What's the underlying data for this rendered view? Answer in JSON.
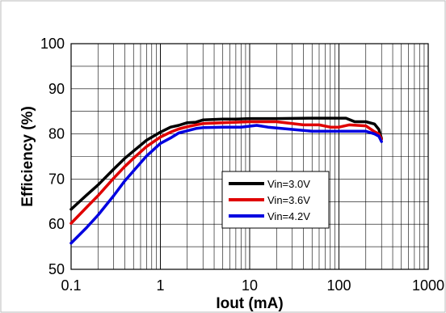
{
  "chart_data": {
    "type": "line",
    "title": "",
    "xlabel": "Iout (mA)",
    "ylabel": "Efficiency (%)",
    "xscale": "log",
    "xlim": [
      0.1,
      1000
    ],
    "ylim": [
      50,
      100
    ],
    "x_ticks": [
      0.1,
      1,
      10,
      100,
      1000
    ],
    "x_tick_labels": [
      "0.1",
      "1",
      "10",
      "100",
      "1000"
    ],
    "y_ticks": [
      50,
      60,
      70,
      80,
      90,
      100
    ],
    "y_tick_labels": [
      "50",
      "60",
      "70",
      "80",
      "90",
      "100"
    ],
    "grid": true,
    "legend_position": "center-right",
    "series": [
      {
        "name": "Vin=3.0V",
        "color": "#000000",
        "x": [
          0.1,
          0.15,
          0.2,
          0.3,
          0.4,
          0.5,
          0.7,
          1.0,
          1.3,
          1.6,
          2.0,
          2.5,
          3,
          5,
          7,
          10,
          20,
          50,
          100,
          120,
          150,
          200,
          250,
          280,
          300
        ],
        "y": [
          63.3,
          66.5,
          68.7,
          72.2,
          74.6,
          76.2,
          78.6,
          80.4,
          81.5,
          81.9,
          82.5,
          82.6,
          83.1,
          83.3,
          83.3,
          83.4,
          83.4,
          83.5,
          83.5,
          83.5,
          82.7,
          82.7,
          82.2,
          81.0,
          79.0
        ]
      },
      {
        "name": "Vin=3.6V",
        "color": "#e00000",
        "x": [
          0.1,
          0.15,
          0.2,
          0.3,
          0.4,
          0.5,
          0.7,
          1.0,
          1.3,
          1.6,
          2.0,
          2.5,
          3,
          5,
          10,
          20,
          30,
          40,
          60,
          80,
          100,
          130,
          200,
          250,
          280,
          300
        ],
        "y": [
          60.2,
          63.8,
          66.3,
          70.2,
          72.8,
          74.6,
          77.2,
          79.3,
          80.4,
          81.1,
          81.6,
          82.0,
          82.3,
          82.5,
          82.7,
          82.7,
          82.3,
          82.0,
          82.0,
          81.5,
          81.5,
          82.0,
          81.8,
          80.5,
          80.0,
          78.8
        ]
      },
      {
        "name": "Vin=4.2V",
        "color": "#0000e0",
        "x": [
          0.1,
          0.15,
          0.2,
          0.3,
          0.4,
          0.5,
          0.7,
          1.0,
          1.3,
          1.6,
          2.0,
          2.5,
          3,
          5,
          8,
          12,
          16,
          20,
          30,
          50,
          100,
          200,
          250,
          280,
          300
        ],
        "y": [
          55.8,
          59.3,
          62.0,
          66.3,
          69.6,
          71.8,
          75.1,
          77.9,
          79.1,
          80.2,
          80.7,
          81.2,
          81.4,
          81.5,
          81.5,
          81.9,
          81.5,
          81.3,
          81.0,
          80.6,
          80.6,
          80.6,
          80.0,
          79.5,
          78.3
        ]
      }
    ]
  }
}
